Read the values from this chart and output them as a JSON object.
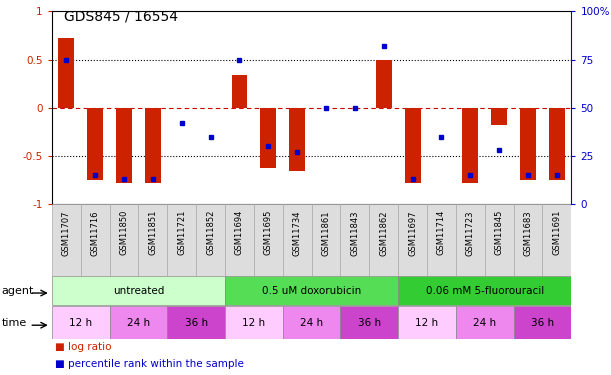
{
  "title": "GDS845 / 16554",
  "samples": [
    "GSM11707",
    "GSM11716",
    "GSM11850",
    "GSM11851",
    "GSM11721",
    "GSM11852",
    "GSM11694",
    "GSM11695",
    "GSM11734",
    "GSM11861",
    "GSM11843",
    "GSM11862",
    "GSM11697",
    "GSM11714",
    "GSM11723",
    "GSM11845",
    "GSM11683",
    "GSM11691"
  ],
  "log_ratio": [
    0.72,
    -0.75,
    -0.78,
    -0.78,
    0.0,
    0.0,
    0.34,
    -0.62,
    -0.65,
    0.0,
    0.0,
    0.5,
    -0.78,
    0.0,
    -0.78,
    -0.18,
    -0.75,
    -0.75
  ],
  "percentile_raw": [
    75,
    15,
    13,
    13,
    42,
    35,
    75,
    30,
    27,
    50,
    50,
    82,
    13,
    35,
    15,
    28,
    15,
    15
  ],
  "agents": [
    {
      "label": "untreated",
      "start": 0,
      "end": 6,
      "color": "#ccffcc"
    },
    {
      "label": "0.5 uM doxorubicin",
      "start": 6,
      "end": 12,
      "color": "#55dd55"
    },
    {
      "label": "0.06 mM 5-fluorouracil",
      "start": 12,
      "end": 18,
      "color": "#33cc33"
    }
  ],
  "times": [
    {
      "label": "12 h",
      "start": 0,
      "end": 2,
      "color": "#ffccff"
    },
    {
      "label": "24 h",
      "start": 2,
      "end": 4,
      "color": "#ee88ee"
    },
    {
      "label": "36 h",
      "start": 4,
      "end": 6,
      "color": "#cc44cc"
    },
    {
      "label": "12 h",
      "start": 6,
      "end": 8,
      "color": "#ffccff"
    },
    {
      "label": "24 h",
      "start": 8,
      "end": 10,
      "color": "#ee88ee"
    },
    {
      "label": "36 h",
      "start": 10,
      "end": 12,
      "color": "#cc44cc"
    },
    {
      "label": "12 h",
      "start": 12,
      "end": 14,
      "color": "#ffccff"
    },
    {
      "label": "24 h",
      "start": 14,
      "end": 16,
      "color": "#ee88ee"
    },
    {
      "label": "36 h",
      "start": 16,
      "end": 18,
      "color": "#cc44cc"
    }
  ],
  "bar_color": "#cc2200",
  "dot_color": "#0000cc",
  "left_axis_color": "#cc2200",
  "right_axis_color": "#0000cc",
  "sample_box_color": "#dddddd",
  "hline0_color": "#cc0000",
  "hline_ref_color": "#000000",
  "fig_width": 6.11,
  "fig_height": 3.75,
  "dpi": 100
}
